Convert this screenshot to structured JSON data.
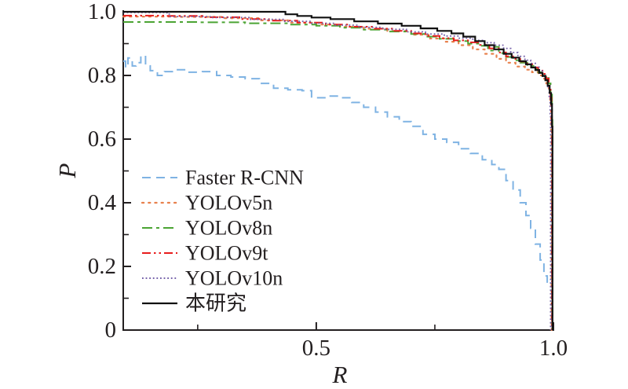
{
  "figure": {
    "background": "#ffffff",
    "axis_color": "#231f20",
    "text_color": "#231f20"
  },
  "chart_data": {
    "type": "line",
    "title": "",
    "xlabel": "R",
    "ylabel": "P",
    "xlim": [
      0.093,
      1.0
    ],
    "ylim": [
      0.0,
      1.0
    ],
    "grid": false,
    "legend_position": "inside lower-left",
    "x_major_ticks": [
      {
        "value": 0.5,
        "label": "0.5"
      },
      {
        "value": 1.0,
        "label": "1.0"
      }
    ],
    "x_minor_ticks": [
      0.25,
      0.75
    ],
    "y_major_ticks": [
      {
        "value": 0.0,
        "label": "0"
      },
      {
        "value": 0.2,
        "label": "0.2"
      },
      {
        "value": 0.4,
        "label": "0.4"
      },
      {
        "value": 0.6,
        "label": "0.6"
      },
      {
        "value": 0.8,
        "label": "0.8"
      },
      {
        "value": 1.0,
        "label": "1.0"
      }
    ],
    "y_minor_ticks": [
      0.1,
      0.3,
      0.5,
      0.7,
      0.9
    ],
    "series": [
      {
        "name": "Faster R-CNN",
        "color": "#7fb3e3",
        "dash": "11,7",
        "width": 2,
        "cap": "butt",
        "points": [
          [
            0.093,
            0.845
          ],
          [
            0.098,
            0.825
          ],
          [
            0.103,
            0.855
          ],
          [
            0.112,
            0.83
          ],
          [
            0.12,
            0.84
          ],
          [
            0.13,
            0.862
          ],
          [
            0.14,
            0.83
          ],
          [
            0.15,
            0.815
          ],
          [
            0.165,
            0.8
          ],
          [
            0.18,
            0.812
          ],
          [
            0.2,
            0.818
          ],
          [
            0.23,
            0.81
          ],
          [
            0.26,
            0.812
          ],
          [
            0.29,
            0.8
          ],
          [
            0.32,
            0.795
          ],
          [
            0.35,
            0.79
          ],
          [
            0.38,
            0.775
          ],
          [
            0.41,
            0.76
          ],
          [
            0.44,
            0.755
          ],
          [
            0.47,
            0.752
          ],
          [
            0.49,
            0.73
          ],
          [
            0.52,
            0.735
          ],
          [
            0.55,
            0.73
          ],
          [
            0.575,
            0.715
          ],
          [
            0.6,
            0.7
          ],
          [
            0.625,
            0.685
          ],
          [
            0.65,
            0.67
          ],
          [
            0.675,
            0.655
          ],
          [
            0.7,
            0.64
          ],
          [
            0.725,
            0.615
          ],
          [
            0.75,
            0.6
          ],
          [
            0.775,
            0.59
          ],
          [
            0.8,
            0.57
          ],
          [
            0.825,
            0.555
          ],
          [
            0.85,
            0.535
          ],
          [
            0.87,
            0.52
          ],
          [
            0.885,
            0.505
          ],
          [
            0.9,
            0.47
          ],
          [
            0.915,
            0.44
          ],
          [
            0.93,
            0.4
          ],
          [
            0.942,
            0.36
          ],
          [
            0.952,
            0.32
          ],
          [
            0.962,
            0.27
          ],
          [
            0.972,
            0.22
          ],
          [
            0.98,
            0.17
          ],
          [
            0.987,
            0.135
          ]
        ]
      },
      {
        "name": "YOLOv5n",
        "color": "#e8814d",
        "dash": "2.2,6",
        "width": 2.2,
        "cap": "round",
        "points": [
          [
            0.093,
            0.985
          ],
          [
            0.2,
            0.984
          ],
          [
            0.3,
            0.98
          ],
          [
            0.38,
            0.973
          ],
          [
            0.44,
            0.966
          ],
          [
            0.5,
            0.96
          ],
          [
            0.55,
            0.953
          ],
          [
            0.6,
            0.947
          ],
          [
            0.65,
            0.94
          ],
          [
            0.7,
            0.928
          ],
          [
            0.74,
            0.916
          ],
          [
            0.77,
            0.906
          ],
          [
            0.8,
            0.895
          ],
          [
            0.83,
            0.882
          ],
          [
            0.855,
            0.868
          ],
          [
            0.88,
            0.852
          ],
          [
            0.9,
            0.84
          ],
          [
            0.92,
            0.828
          ],
          [
            0.94,
            0.818
          ],
          [
            0.955,
            0.81
          ],
          [
            0.968,
            0.8
          ],
          [
            0.978,
            0.79
          ],
          [
            0.985,
            0.775
          ],
          [
            0.99,
            0.75
          ],
          [
            0.993,
            0.71
          ],
          [
            0.995,
            0.62
          ],
          [
            0.996,
            0.0
          ]
        ]
      },
      {
        "name": "YOLOv8n",
        "color": "#4ba433",
        "dash": "13,5,4,5",
        "width": 2,
        "cap": "butt",
        "points": [
          [
            0.093,
            0.968
          ],
          [
            0.25,
            0.967
          ],
          [
            0.35,
            0.964
          ],
          [
            0.44,
            0.96
          ],
          [
            0.5,
            0.956
          ],
          [
            0.55,
            0.95
          ],
          [
            0.6,
            0.944
          ],
          [
            0.65,
            0.938
          ],
          [
            0.7,
            0.93
          ],
          [
            0.73,
            0.922
          ],
          [
            0.76,
            0.915
          ],
          [
            0.79,
            0.908
          ],
          [
            0.82,
            0.9
          ],
          [
            0.845,
            0.893
          ],
          [
            0.862,
            0.878
          ],
          [
            0.872,
            0.89
          ],
          [
            0.885,
            0.87
          ],
          [
            0.9,
            0.858
          ],
          [
            0.915,
            0.848
          ],
          [
            0.93,
            0.84
          ],
          [
            0.945,
            0.83
          ],
          [
            0.958,
            0.82
          ],
          [
            0.968,
            0.81
          ],
          [
            0.977,
            0.8
          ],
          [
            0.984,
            0.792
          ],
          [
            0.99,
            0.775
          ],
          [
            0.994,
            0.74
          ],
          [
            0.997,
            0.66
          ],
          [
            0.998,
            0.0
          ]
        ]
      },
      {
        "name": "YOLOv9t",
        "color": "#e81c1c",
        "dash": "11,4,2.5,4,2.5,4",
        "width": 2,
        "cap": "butt",
        "points": [
          [
            0.093,
            0.988
          ],
          [
            0.18,
            0.987
          ],
          [
            0.26,
            0.983
          ],
          [
            0.34,
            0.977
          ],
          [
            0.4,
            0.972
          ],
          [
            0.46,
            0.966
          ],
          [
            0.52,
            0.96
          ],
          [
            0.57,
            0.953
          ],
          [
            0.62,
            0.947
          ],
          [
            0.66,
            0.94
          ],
          [
            0.7,
            0.932
          ],
          [
            0.73,
            0.924
          ],
          [
            0.76,
            0.917
          ],
          [
            0.79,
            0.91
          ],
          [
            0.82,
            0.904
          ],
          [
            0.845,
            0.896
          ],
          [
            0.865,
            0.885
          ],
          [
            0.885,
            0.872
          ],
          [
            0.9,
            0.86
          ],
          [
            0.915,
            0.852
          ],
          [
            0.93,
            0.844
          ],
          [
            0.945,
            0.835
          ],
          [
            0.958,
            0.825
          ],
          [
            0.968,
            0.815
          ],
          [
            0.977,
            0.805
          ],
          [
            0.985,
            0.79
          ],
          [
            0.99,
            0.765
          ],
          [
            0.994,
            0.73
          ],
          [
            0.996,
            0.65
          ],
          [
            0.997,
            0.0
          ]
        ]
      },
      {
        "name": "YOLOv10n",
        "color": "#7561aa",
        "dash": "1.8,2.8",
        "width": 1.8,
        "cap": "butt",
        "points": [
          [
            0.093,
            0.998
          ],
          [
            0.185,
            0.997
          ],
          [
            0.19,
            0.985
          ],
          [
            0.28,
            0.982
          ],
          [
            0.36,
            0.976
          ],
          [
            0.43,
            0.97
          ],
          [
            0.49,
            0.964
          ],
          [
            0.54,
            0.958
          ],
          [
            0.59,
            0.951
          ],
          [
            0.64,
            0.945
          ],
          [
            0.69,
            0.937
          ],
          [
            0.73,
            0.93
          ],
          [
            0.77,
            0.924
          ],
          [
            0.8,
            0.917
          ],
          [
            0.83,
            0.91
          ],
          [
            0.855,
            0.903
          ],
          [
            0.875,
            0.895
          ],
          [
            0.895,
            0.885
          ],
          [
            0.91,
            0.872
          ],
          [
            0.925,
            0.86
          ],
          [
            0.94,
            0.848
          ],
          [
            0.952,
            0.838
          ],
          [
            0.962,
            0.826
          ],
          [
            0.97,
            0.814
          ],
          [
            0.977,
            0.8
          ],
          [
            0.983,
            0.785
          ],
          [
            0.988,
            0.765
          ],
          [
            0.991,
            0.73
          ],
          [
            0.993,
            0.68
          ],
          [
            0.994,
            0.0
          ]
        ]
      },
      {
        "name": "本研究",
        "color": "#111111",
        "dash": "",
        "width": 2.2,
        "cap": "butt",
        "points": [
          [
            0.093,
            1.0
          ],
          [
            0.4,
            1.0
          ],
          [
            0.435,
            0.992
          ],
          [
            0.46,
            0.987
          ],
          [
            0.49,
            0.982
          ],
          [
            0.53,
            0.977
          ],
          [
            0.58,
            0.97
          ],
          [
            0.63,
            0.963
          ],
          [
            0.68,
            0.956
          ],
          [
            0.72,
            0.948
          ],
          [
            0.755,
            0.94
          ],
          [
            0.785,
            0.932
          ],
          [
            0.81,
            0.922
          ],
          [
            0.835,
            0.908
          ],
          [
            0.855,
            0.895
          ],
          [
            0.875,
            0.882
          ],
          [
            0.895,
            0.868
          ],
          [
            0.912,
            0.856
          ],
          [
            0.928,
            0.845
          ],
          [
            0.942,
            0.835
          ],
          [
            0.953,
            0.825
          ],
          [
            0.962,
            0.817
          ],
          [
            0.97,
            0.808
          ],
          [
            0.977,
            0.798
          ],
          [
            0.983,
            0.785
          ],
          [
            0.988,
            0.768
          ],
          [
            0.992,
            0.745
          ],
          [
            0.995,
            0.71
          ],
          [
            0.997,
            0.64
          ],
          [
            0.998,
            0.0
          ]
        ]
      }
    ]
  }
}
